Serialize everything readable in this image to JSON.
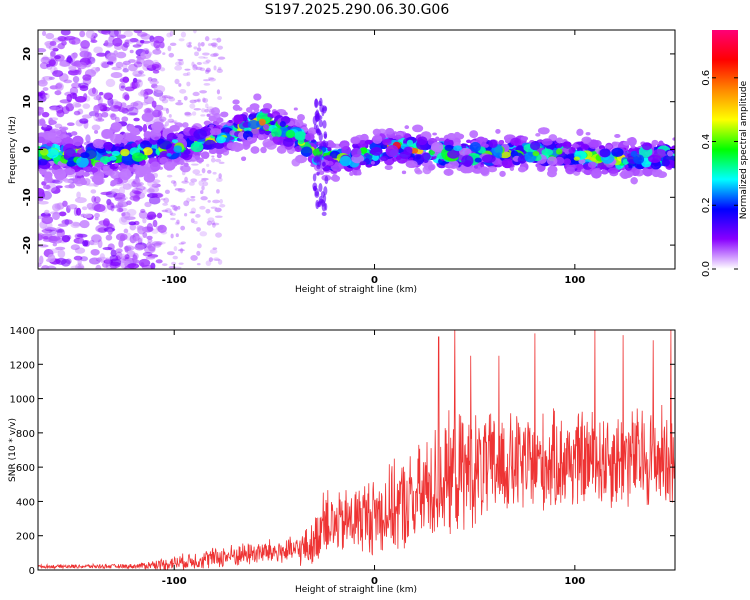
{
  "title": "S197.2025.290.06.30.G06",
  "chart_data": [
    {
      "type": "heatmap",
      "xlabel": "Height of straight line (km)",
      "ylabel": "Frequency (Hz)",
      "xlim": [
        -168,
        150
      ],
      "ylim": [
        -25,
        25
      ],
      "x_ticks": [
        -100,
        0,
        100
      ],
      "x_tick_labels": [
        "-100",
        "0",
        "100"
      ],
      "y_ticks": [
        -20,
        -10,
        0,
        10,
        20
      ],
      "y_tick_labels": [
        "-20",
        "-10",
        "0",
        "10",
        "20"
      ],
      "ridge": {
        "x": [
          -165,
          -140,
          -120,
          -100,
          -80,
          -65,
          -55,
          -45,
          -35,
          -28,
          -20,
          -10,
          0,
          10,
          20,
          40,
          60,
          80,
          100,
          120,
          140,
          150
        ],
        "y": [
          -1,
          -1.5,
          -1,
          0.5,
          2.5,
          4.5,
          5.5,
          4,
          1.5,
          -1,
          -2,
          -1.5,
          -0.5,
          0.5,
          0,
          -1,
          -1,
          -0.5,
          -1.5,
          -2,
          -1.5,
          -1
        ]
      },
      "colorbar": {
        "label": "Normalized spectral amplitude",
        "range": [
          0.0,
          0.75
        ],
        "ticks": [
          0.0,
          0.2,
          0.4,
          0.6
        ],
        "tick_labels": [
          "0.0",
          "0.2",
          "0.4",
          "0.6"
        ],
        "colors": [
          "#ffffff",
          "#8800ff",
          "#0000ff",
          "#00ffff",
          "#00ff00",
          "#ffff00",
          "#ff8800",
          "#ff0000",
          "#ff0077"
        ]
      }
    },
    {
      "type": "line",
      "xlabel": "Height of straight line (km)",
      "ylabel": "SNR (10 * v/v)",
      "xlim": [
        -168,
        150
      ],
      "ylim": [
        0,
        1400
      ],
      "x_ticks": [
        -100,
        0,
        100
      ],
      "x_tick_labels": [
        "-100",
        "0",
        "100"
      ],
      "y_ticks": [
        0,
        200,
        400,
        600,
        800,
        1000,
        1200,
        1400
      ],
      "y_tick_labels": [
        "0",
        "200",
        "400",
        "600",
        "800",
        "1000",
        "1200",
        "1400"
      ],
      "color": "#ee3333",
      "envelope": {
        "x": [
          -168,
          -120,
          -105,
          -80,
          -60,
          -40,
          -30,
          -25,
          -20,
          -10,
          0,
          20,
          30,
          40,
          60,
          80,
          100,
          120,
          150
        ],
        "mean": [
          20,
          22,
          35,
          70,
          100,
          110,
          150,
          330,
          250,
          300,
          320,
          400,
          500,
          560,
          600,
          620,
          640,
          650,
          660
        ],
        "amplitude": [
          12,
          15,
          40,
          70,
          80,
          90,
          150,
          250,
          200,
          230,
          260,
          330,
          380,
          400,
          350,
          330,
          320,
          330,
          340
        ]
      },
      "peaks": [
        {
          "x": 32,
          "y": 1360
        },
        {
          "x": 40,
          "y": 1420
        },
        {
          "x": 48,
          "y": 1250
        },
        {
          "x": 62,
          "y": 1250
        },
        {
          "x": 80,
          "y": 1380
        },
        {
          "x": 110,
          "y": 1400
        },
        {
          "x": 124,
          "y": 1370
        },
        {
          "x": 139,
          "y": 1340
        },
        {
          "x": 148,
          "y": 1400
        }
      ]
    }
  ]
}
